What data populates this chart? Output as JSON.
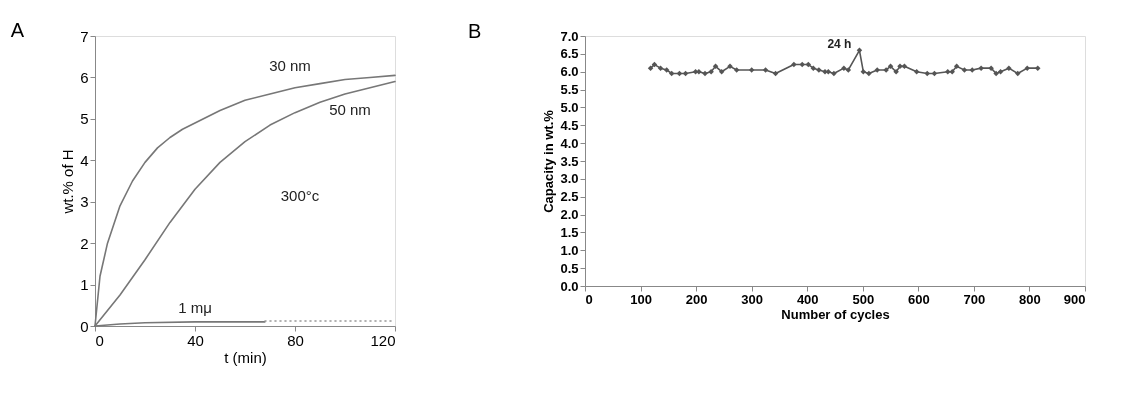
{
  "chart_data": [
    {
      "type": "line",
      "title": "A",
      "xlabel": "t (min)",
      "ylabel": "wt.% of H",
      "xlim": [
        0,
        120
      ],
      "xticks": [
        0,
        40,
        80,
        120
      ],
      "ylim": [
        0,
        7
      ],
      "yticks": [
        0,
        1,
        2,
        3,
        4,
        5,
        6,
        7
      ],
      "grid": false,
      "marker": "none",
      "annotations": [
        "300°c"
      ],
      "series": [
        {
          "name": "30 nm",
          "color": "#777777",
          "line_style": "solid",
          "x": [
            0,
            2,
            5,
            10,
            15,
            20,
            25,
            30,
            35,
            40,
            50,
            60,
            70,
            80,
            90,
            100,
            110,
            120
          ],
          "values": [
            0,
            1.2,
            2.0,
            2.9,
            3.5,
            3.95,
            4.3,
            4.55,
            4.75,
            4.9,
            5.2,
            5.45,
            5.6,
            5.75,
            5.85,
            5.95,
            6.0,
            6.05
          ]
        },
        {
          "name": "50 nm",
          "color": "#777777",
          "line_style": "solid",
          "x": [
            0,
            10,
            20,
            30,
            40,
            50,
            60,
            70,
            80,
            90,
            100,
            110,
            120
          ],
          "values": [
            0,
            0.75,
            1.6,
            2.5,
            3.3,
            3.95,
            4.45,
            4.85,
            5.15,
            5.4,
            5.6,
            5.75,
            5.9
          ]
        },
        {
          "name": "1 mμ",
          "color": "#777777",
          "line_style": "solid",
          "x": [
            0,
            10,
            20,
            40,
            68
          ],
          "values": [
            0,
            0.05,
            0.08,
            0.1,
            0.1
          ]
        },
        {
          "color": "#999999",
          "line_style": "dotted",
          "x": [
            68,
            120
          ],
          "values": [
            0.12,
            0.12
          ]
        }
      ]
    },
    {
      "type": "line",
      "title": "B",
      "xlabel": "Number of cycles",
      "ylabel": "Capacity in wt.%",
      "xlim": [
        0,
        900
      ],
      "xticks": [
        0,
        100,
        200,
        300,
        400,
        500,
        600,
        700,
        800,
        900
      ],
      "ylim": [
        0,
        7
      ],
      "yticks": [
        {
          "value": 0,
          "label": "0.0"
        },
        0.5,
        {
          "value": 1,
          "label": "1.0"
        },
        1.5,
        {
          "value": 2,
          "label": "2.0"
        },
        2.5,
        {
          "value": 3,
          "label": "3.0"
        },
        3.5,
        {
          "value": 4,
          "label": "4.0"
        },
        4.5,
        {
          "value": 5,
          "label": "5.0"
        },
        5.5,
        {
          "value": 6,
          "label": "6.0"
        },
        6.5,
        {
          "value": 7,
          "label": "7.0"
        }
      ],
      "grid": false,
      "marker": "diamond",
      "line_style": "solid",
      "annotations": [
        {
          "text": "24 h",
          "x": 494,
          "y": 6.6
        }
      ],
      "series": [
        {
          "color": "#555555",
          "x": [
            118,
            125,
            136,
            147,
            156,
            170,
            181,
            199,
            205,
            216,
            227,
            235,
            246,
            261,
            273,
            300,
            325,
            343,
            376,
            391,
            402,
            411,
            421,
            432,
            438,
            448,
            466,
            474,
            494,
            501,
            511,
            526,
            542,
            550,
            560,
            567,
            575,
            597,
            616,
            629,
            653,
            661,
            669,
            683,
            697,
            713,
            731,
            740,
            748,
            763,
            779,
            796,
            815
          ],
          "values": [
            6.1,
            6.2,
            6.1,
            6.05,
            5.95,
            5.95,
            5.95,
            6.0,
            6.0,
            5.95,
            6.0,
            6.15,
            6.0,
            6.15,
            6.05,
            6.05,
            6.05,
            5.95,
            6.2,
            6.2,
            6.2,
            6.1,
            6.05,
            6.0,
            6.0,
            5.95,
            6.1,
            6.05,
            6.6,
            6.0,
            5.95,
            6.05,
            6.05,
            6.15,
            6.0,
            6.15,
            6.15,
            6.0,
            5.95,
            5.95,
            6.0,
            6.0,
            6.15,
            6.05,
            6.05,
            6.1,
            6.1,
            5.95,
            6.0,
            6.1,
            5.95,
            6.1,
            6.1
          ]
        }
      ]
    }
  ]
}
